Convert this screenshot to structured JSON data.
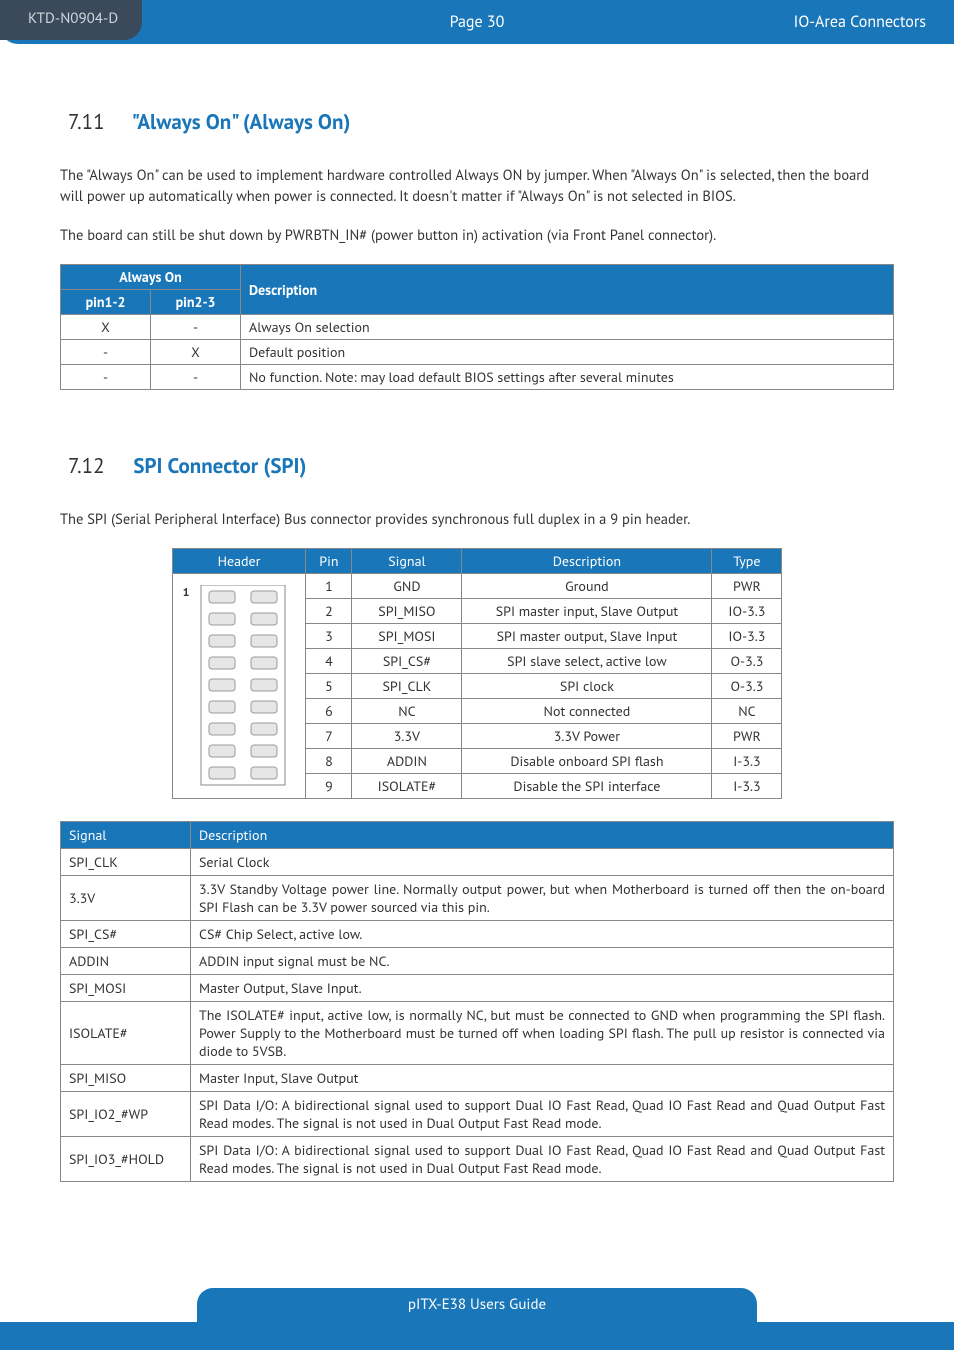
{
  "header": {
    "doc_id": "KTD-N0904-D",
    "page": "Page 30",
    "section": "IO-Area Connectors"
  },
  "sections": {
    "s1": {
      "num": "7.11",
      "title": "\"Always On\" (Always On)"
    },
    "s2": {
      "num": "7.12",
      "title": "SPI Connector (SPI)"
    }
  },
  "paras": {
    "p1": "The \"Always On\" can be used to implement hardware controlled Always ON by jumper. When \"Always On\" is selected, then the board will power up automatically when power is connected. It doesn't matter if \"Always On\" is not selected in BIOS.",
    "p2": "The board can still be shut down by PWRBTN_IN# (power button in) activation (via Front Panel connector).",
    "p3": "The SPI (Serial Peripheral Interface) Bus connector provides synchronous full duplex in a 9 pin header."
  },
  "t1": {
    "hdr_group": "Always On",
    "hdr_pin12": "pin1-2",
    "hdr_pin23": "pin2-3",
    "hdr_desc": "Description",
    "rows": [
      {
        "p12": "X",
        "p23": "-",
        "desc": "Always On selection"
      },
      {
        "p12": "-",
        "p23": "X",
        "desc": "Default position"
      },
      {
        "p12": "-",
        "p23": "-",
        "desc": "No function. Note: may load default BIOS settings after several minutes"
      }
    ]
  },
  "t2": {
    "hdr_header": "Header",
    "hdr_pin": "Pin",
    "hdr_signal": "Signal",
    "hdr_desc": "Description",
    "hdr_type": "Type",
    "pin_label": "1",
    "rows": [
      {
        "pin": "1",
        "sig": "GND",
        "desc": "Ground",
        "type": "PWR"
      },
      {
        "pin": "2",
        "sig": "SPI_MISO",
        "desc": "SPI master input, Slave Output",
        "type": "IO-3.3"
      },
      {
        "pin": "3",
        "sig": "SPI_MOSI",
        "desc": "SPI master output, Slave Input",
        "type": "IO-3.3"
      },
      {
        "pin": "4",
        "sig": "SPI_CS#",
        "desc": "SPI slave select, active low",
        "type": "O-3.3"
      },
      {
        "pin": "5",
        "sig": "SPI_CLK",
        "desc": "SPI clock",
        "type": "O-3.3"
      },
      {
        "pin": "6",
        "sig": "NC",
        "desc": "Not connected",
        "type": "NC"
      },
      {
        "pin": "7",
        "sig": "3.3V",
        "desc": "3.3V Power",
        "type": "PWR"
      },
      {
        "pin": "8",
        "sig": "ADDIN",
        "desc": "Disable onboard SPI flash",
        "type": "I-3.3"
      },
      {
        "pin": "9",
        "sig": "ISOLATE#",
        "desc": "Disable the SPI interface",
        "type": "I-3.3"
      }
    ]
  },
  "t3": {
    "hdr_signal": "Signal",
    "hdr_desc": "Description",
    "rows": [
      {
        "sig": "SPI_CLK",
        "desc": "Serial Clock"
      },
      {
        "sig": "3.3V",
        "desc": "3.3V Standby Voltage power line. Normally output power, but when Motherboard is turned off then the on-board SPI Flash can be 3.3V power sourced via this pin."
      },
      {
        "sig": "SPI_CS#",
        "desc": "CS# Chip Select, active low."
      },
      {
        "sig": "ADDIN",
        "desc": "ADDIN input signal must be NC."
      },
      {
        "sig": "SPI_MOSI",
        "desc": "Master Output, Slave Input."
      },
      {
        "sig": "ISOLATE#",
        "desc": "The ISOLATE# input, active low, is normally NC, but must be connected to GND when programming the SPI flash.  Power Supply to the Motherboard must be turned off when loading SPI flash. The pull up resistor is connected via diode to 5VSB."
      },
      {
        "sig": "SPI_MISO",
        "desc": "Master Input, Slave Output"
      },
      {
        "sig": "SPI_IO2_#WP",
        "desc": "SPI Data I/O: A bidirectional signal used to support Dual IO Fast Read, Quad IO Fast Read and Quad Output Fast Read modes. The signal is not used in Dual Output Fast Read mode."
      },
      {
        "sig": "SPI_IO3_#HOLD",
        "desc": "SPI Data I/O: A bidirectional signal used to support Dual IO Fast Read, Quad IO Fast Read and Quad Output Fast Read modes. The signal is not used in Dual Output Fast Read mode."
      }
    ]
  },
  "footer": "pITX-E38 Users Guide",
  "colors": {
    "brand": "#1976b8",
    "tab": "#3a4a5a",
    "border": "#888888"
  }
}
